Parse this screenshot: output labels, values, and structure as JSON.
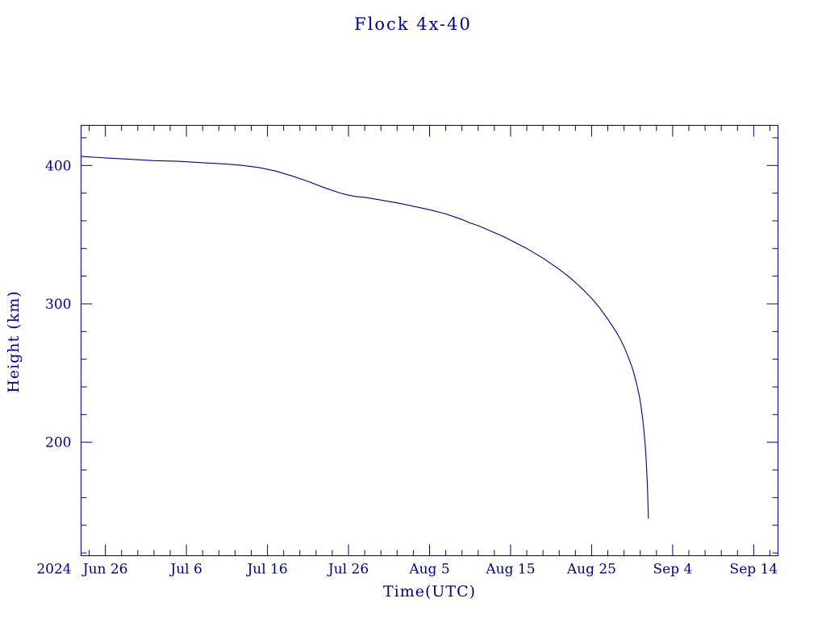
{
  "chart_data": {
    "type": "line",
    "title": "Flock 4x-40",
    "xlabel": "Time(UTC)",
    "ylabel": "Height (km)",
    "year_label": "2024",
    "line_color": "#00008B",
    "axis_color": "#00008B",
    "background": "#ffffff",
    "grid": false,
    "legend": "none",
    "x_unit": "days along axis (tick labels give dates)",
    "xlim_days": [
      0,
      86
    ],
    "ylim": [
      118,
      429
    ],
    "xticks": [
      {
        "day": 3,
        "label": "Jun 26"
      },
      {
        "day": 13,
        "label": "Jul 6"
      },
      {
        "day": 23,
        "label": "Jul 16"
      },
      {
        "day": 33,
        "label": "Jul 26"
      },
      {
        "day": 43,
        "label": "Aug 5"
      },
      {
        "day": 53,
        "label": "Aug 15"
      },
      {
        "day": 63,
        "label": "Aug 25"
      },
      {
        "day": 73,
        "label": "Sep 4"
      },
      {
        "day": 83,
        "label": "Sep 14"
      }
    ],
    "yticks": [
      {
        "value": 200,
        "label": "200"
      },
      {
        "value": 300,
        "label": "300"
      },
      {
        "value": 400,
        "label": "400"
      }
    ],
    "minor_x_step_days": 2,
    "minor_y_step": 20,
    "series": [
      {
        "name": "Flock 4x-40 orbital height",
        "points": [
          [
            0,
            406.5
          ],
          [
            3,
            405.5
          ],
          [
            6,
            404.5
          ],
          [
            9,
            403.5
          ],
          [
            12,
            403
          ],
          [
            15,
            402
          ],
          [
            18,
            401
          ],
          [
            20,
            400
          ],
          [
            22,
            398.5
          ],
          [
            24,
            396
          ],
          [
            26,
            392.5
          ],
          [
            28,
            388.5
          ],
          [
            30,
            384
          ],
          [
            32,
            380
          ],
          [
            33,
            378.5
          ],
          [
            34,
            377.5
          ],
          [
            35,
            377
          ],
          [
            37,
            375
          ],
          [
            39,
            373
          ],
          [
            41,
            370.5
          ],
          [
            43,
            368
          ],
          [
            45,
            365
          ],
          [
            46,
            363
          ],
          [
            47,
            361
          ],
          [
            48,
            358.5
          ],
          [
            49,
            356.5
          ],
          [
            50,
            354
          ],
          [
            51,
            351.5
          ],
          [
            52,
            349
          ],
          [
            53,
            346
          ],
          [
            54,
            343
          ],
          [
            55,
            340
          ],
          [
            56,
            336.5
          ],
          [
            57,
            333
          ],
          [
            58,
            329
          ],
          [
            59,
            325
          ],
          [
            60,
            320.5
          ],
          [
            61,
            315.5
          ],
          [
            62,
            310
          ],
          [
            63,
            304
          ],
          [
            64,
            297
          ],
          [
            65,
            289
          ],
          [
            66,
            280
          ],
          [
            66.5,
            275
          ],
          [
            67,
            269
          ],
          [
            67.5,
            262
          ],
          [
            68,
            254
          ],
          [
            68.3,
            248
          ],
          [
            68.6,
            241
          ],
          [
            68.9,
            233
          ],
          [
            69.1,
            226
          ],
          [
            69.3,
            217
          ],
          [
            69.5,
            206
          ],
          [
            69.6,
            199
          ],
          [
            69.7,
            191
          ],
          [
            69.8,
            180
          ],
          [
            69.9,
            166
          ],
          [
            69.95,
            155
          ],
          [
            70,
            145
          ]
        ]
      }
    ]
  }
}
